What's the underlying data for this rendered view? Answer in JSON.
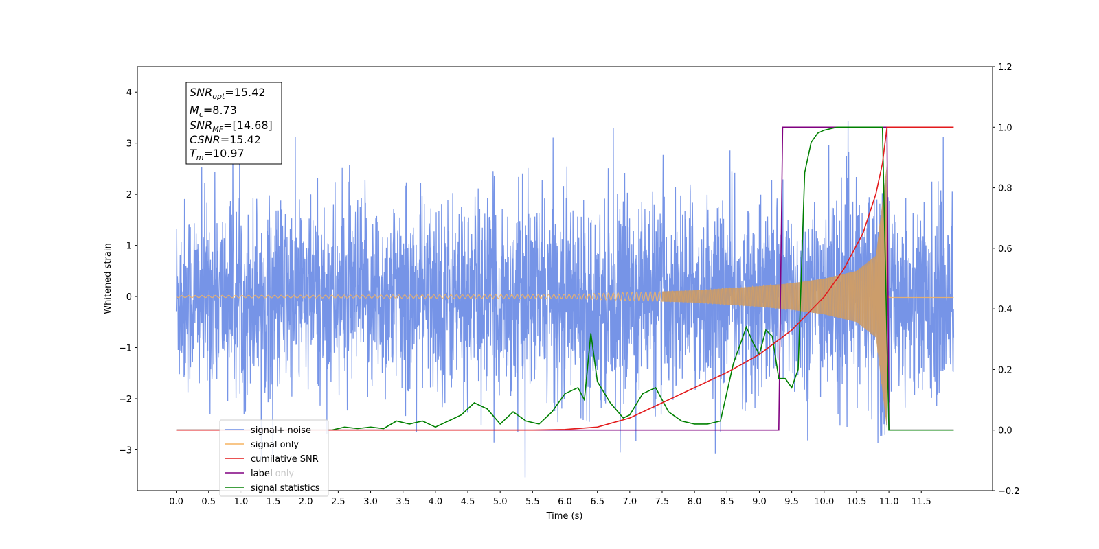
{
  "chart_data": {
    "type": "line",
    "title": "",
    "xlabel": "Time (s)",
    "ylabel": "Whitened strain",
    "xlim": [
      -0.6,
      12.6
    ],
    "ylim": [
      -3.8,
      4.5
    ],
    "y2lim": [
      -0.2,
      1.2
    ],
    "x_ticks": [
      "0.0",
      "0.5",
      "1.0",
      "1.5",
      "2.0",
      "2.5",
      "3.0",
      "3.5",
      "4.0",
      "4.5",
      "5.0",
      "5.5",
      "6.0",
      "6.5",
      "7.0",
      "7.5",
      "8.0",
      "8.5",
      "9.0",
      "9.5",
      "10.0",
      "10.5",
      "11.0",
      "11.5"
    ],
    "y_ticks": [
      "−3",
      "−2",
      "−1",
      "0",
      "1",
      "2",
      "3",
      "4"
    ],
    "y2_ticks": [
      "−0.2",
      "0.0",
      "0.2",
      "0.4",
      "0.6",
      "0.8",
      "1.0",
      "1.2"
    ],
    "legend_position": "lower-left",
    "grid": false,
    "info_box": {
      "snr_opt": {
        "name": "SNR",
        "sub": "opt",
        "value": "=15.42"
      },
      "mc": {
        "name": "M",
        "sub": "c",
        "value": "=8.73"
      },
      "snr_mf": {
        "name": "SNR",
        "sub": "MF",
        "value": "=[14.68]"
      },
      "csnr": {
        "name": "CSNR",
        "value": "=15.42"
      },
      "tm": {
        "name": "T",
        "sub": "m",
        "value": "=10.97"
      }
    },
    "series": [
      {
        "name": "signal+ noise",
        "color": "#6f8ee6",
        "axis": "left",
        "noise_sigma": 1.0,
        "x_range": [
          0.0,
          12.0
        ]
      },
      {
        "name": "signal only",
        "color": "#f5b461",
        "axis": "left",
        "envelope_x": [
          0.0,
          6.0,
          8.0,
          9.0,
          9.5,
          10.0,
          10.5,
          10.8,
          10.97
        ],
        "envelope_y": [
          0.02,
          0.04,
          0.12,
          0.2,
          0.26,
          0.35,
          0.5,
          0.8,
          2.6
        ]
      },
      {
        "name": "cumilative SNR",
        "color": "#e31a1c",
        "axis": "right",
        "x": [
          0.0,
          5.5,
          6.0,
          6.5,
          7.0,
          7.5,
          8.0,
          8.5,
          9.0,
          9.5,
          10.0,
          10.3,
          10.6,
          10.8,
          10.9,
          10.97,
          11.0,
          12.0
        ],
        "y": [
          0.0,
          0.0,
          0.002,
          0.01,
          0.04,
          0.09,
          0.14,
          0.19,
          0.25,
          0.33,
          0.44,
          0.53,
          0.65,
          0.78,
          0.88,
          1.0,
          1.0,
          1.0
        ]
      },
      {
        "name": "label",
        "color": "#800080",
        "axis": "right",
        "x": [
          0.0,
          9.3,
          9.36,
          10.97,
          11.0,
          12.0
        ],
        "y": [
          0.0,
          0.0,
          1.0,
          1.0,
          0.0,
          0.0
        ]
      },
      {
        "name": "label only",
        "color": "#bdbdbd",
        "axis": "right",
        "x": [],
        "y": []
      },
      {
        "name": "signal statistics",
        "color": "#008000",
        "axis": "right",
        "x": [
          0.0,
          2.4,
          2.6,
          2.8,
          3.0,
          3.2,
          3.4,
          3.6,
          3.8,
          4.0,
          4.2,
          4.4,
          4.6,
          4.8,
          5.0,
          5.2,
          5.4,
          5.6,
          5.8,
          6.0,
          6.2,
          6.3,
          6.4,
          6.5,
          6.7,
          6.9,
          7.0,
          7.2,
          7.4,
          7.6,
          7.8,
          8.0,
          8.2,
          8.4,
          8.6,
          8.7,
          8.8,
          8.9,
          9.0,
          9.1,
          9.2,
          9.3,
          9.4,
          9.5,
          9.6,
          9.7,
          9.8,
          9.9,
          10.0,
          10.2,
          10.4,
          10.6,
          10.8,
          10.9,
          11.0,
          11.1,
          11.3,
          12.0
        ],
        "y": [
          0.0,
          0.0,
          0.01,
          0.005,
          0.01,
          0.005,
          0.03,
          0.02,
          0.03,
          0.01,
          0.03,
          0.05,
          0.09,
          0.07,
          0.02,
          0.06,
          0.03,
          0.02,
          0.06,
          0.12,
          0.14,
          0.1,
          0.32,
          0.16,
          0.09,
          0.04,
          0.05,
          0.12,
          0.14,
          0.06,
          0.03,
          0.02,
          0.02,
          0.03,
          0.22,
          0.28,
          0.34,
          0.29,
          0.25,
          0.33,
          0.31,
          0.17,
          0.17,
          0.14,
          0.2,
          0.85,
          0.95,
          0.98,
          0.99,
          1.0,
          1.0,
          1.0,
          1.0,
          1.0,
          0.0,
          0.0,
          0.0,
          0.0
        ]
      }
    ]
  }
}
